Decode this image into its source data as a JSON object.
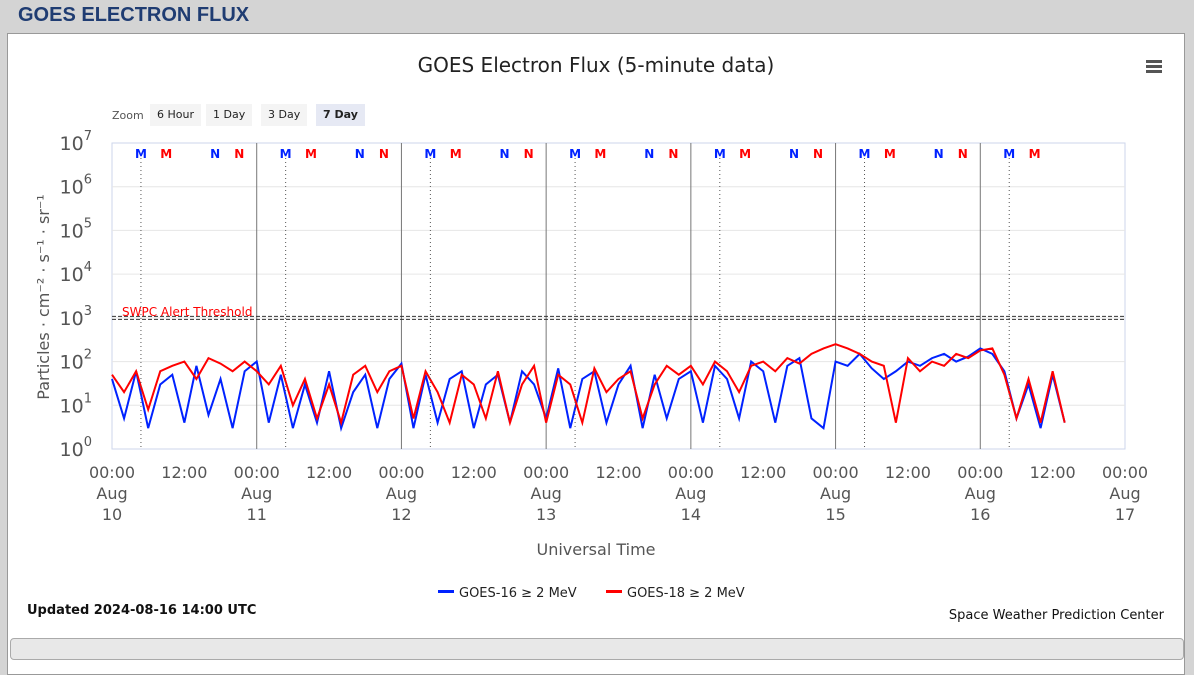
{
  "header": {
    "title": "GOES ELECTRON FLUX"
  },
  "zoom": {
    "label": "Zoom",
    "options": [
      "6 Hour",
      "1 Day",
      "3 Day",
      "7 Day"
    ],
    "selected": "7 Day"
  },
  "menu_icon": "hamburger-menu-icon",
  "footer": {
    "updated": "Updated 2024-08-16 14:00 UTC",
    "credit": "Space Weather Prediction Center"
  },
  "chart_data": {
    "type": "line",
    "title": "GOES Electron Flux (5-minute data)",
    "xlabel": "Universal Time",
    "ylabel": "Particles · cm⁻² · s⁻¹ · sr⁻¹",
    "yscale": "log",
    "ylim": [
      1,
      10000000
    ],
    "ytick_exponents": [
      0,
      1,
      2,
      3,
      4,
      5,
      6,
      7
    ],
    "xlim": [
      "2024-08-10 00:00",
      "2024-08-17 00:00"
    ],
    "xticks": [
      [
        "00:00",
        "Aug",
        "10"
      ],
      [
        "12:00"
      ],
      [
        "00:00",
        "Aug",
        "11"
      ],
      [
        "12:00"
      ],
      [
        "00:00",
        "Aug",
        "12"
      ],
      [
        "12:00"
      ],
      [
        "00:00",
        "Aug",
        "13"
      ],
      [
        "12:00"
      ],
      [
        "00:00",
        "Aug",
        "14"
      ],
      [
        "12:00"
      ],
      [
        "00:00",
        "Aug",
        "15"
      ],
      [
        "12:00"
      ],
      [
        "00:00",
        "Aug",
        "16"
      ],
      [
        "12:00"
      ],
      [
        "00:00",
        "Aug",
        "17"
      ]
    ],
    "x_start": "2024-08-10 00:00",
    "x_step_hours": 2,
    "threshold": {
      "label": "SWPC Alert Threshold",
      "value": 1000,
      "color": "#ff0000"
    },
    "legend": {
      "placement": "bottom-center"
    },
    "series": [
      {
        "name": "GOES-16 ≥ 2 MeV",
        "color": "#0022ff",
        "values": [
          40,
          5,
          60,
          3,
          30,
          50,
          4,
          80,
          6,
          40,
          3,
          60,
          100,
          4,
          50,
          3,
          30,
          4,
          60,
          3,
          20,
          50,
          3,
          40,
          90,
          3,
          50,
          4,
          40,
          60,
          3,
          30,
          50,
          4,
          60,
          30,
          5,
          70,
          3,
          40,
          60,
          4,
          30,
          80,
          3,
          50,
          5,
          40,
          60,
          4,
          80,
          40,
          5,
          100,
          60,
          4,
          80,
          120,
          5,
          3,
          100,
          80,
          150,
          70,
          40,
          60,
          100,
          80,
          120,
          150,
          100,
          130,
          200,
          150,
          60,
          5,
          30,
          3,
          50,
          4
        ]
      },
      {
        "name": "GOES-18 ≥ 2 MeV",
        "color": "#ff0000",
        "values": [
          50,
          20,
          60,
          8,
          60,
          80,
          100,
          40,
          120,
          90,
          60,
          100,
          60,
          30,
          80,
          10,
          40,
          5,
          30,
          4,
          50,
          80,
          20,
          60,
          80,
          5,
          60,
          20,
          4,
          50,
          30,
          5,
          60,
          4,
          30,
          80,
          4,
          50,
          30,
          4,
          70,
          20,
          40,
          60,
          5,
          30,
          80,
          50,
          80,
          30,
          100,
          60,
          20,
          80,
          100,
          60,
          120,
          90,
          150,
          200,
          250,
          200,
          150,
          100,
          80,
          4,
          120,
          60,
          100,
          80,
          150,
          120,
          180,
          200,
          50,
          5,
          40,
          4,
          60,
          4
        ]
      }
    ],
    "annotations": [
      {
        "label": "M",
        "color": "#0022ff",
        "hour_offsets": [
          4.8,
          28.8,
          52.8,
          76.8,
          100.8,
          124.8,
          148.8
        ]
      },
      {
        "label": "M",
        "color": "#ff0000",
        "hour_offsets": [
          9,
          33,
          57,
          81,
          105,
          129,
          153
        ]
      },
      {
        "label": "N",
        "color": "#0022ff",
        "hour_offsets": [
          17.1,
          41.1,
          65.1,
          89.1,
          113.1,
          137.1
        ]
      },
      {
        "label": "N",
        "color": "#ff0000",
        "hour_offsets": [
          21.1,
          45.1,
          69.1,
          93.1,
          117.1,
          141.1
        ]
      }
    ]
  }
}
